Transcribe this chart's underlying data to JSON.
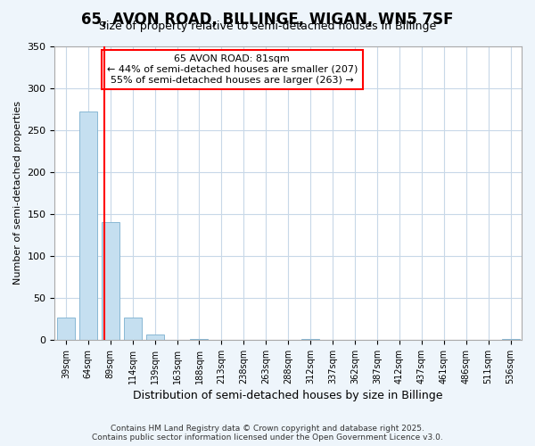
{
  "title1": "65, AVON ROAD, BILLINGE, WIGAN, WN5 7SF",
  "title2": "Size of property relative to semi-detached houses in Billinge",
  "xlabel": "Distribution of semi-detached houses by size in Billinge",
  "ylabel": "Number of semi-detached properties",
  "categories": [
    "39sqm",
    "64sqm",
    "89sqm",
    "114sqm",
    "139sqm",
    "163sqm",
    "188sqm",
    "213sqm",
    "238sqm",
    "263sqm",
    "288sqm",
    "312sqm",
    "337sqm",
    "362sqm",
    "387sqm",
    "412sqm",
    "437sqm",
    "461sqm",
    "486sqm",
    "511sqm",
    "536sqm"
  ],
  "values": [
    27,
    272,
    140,
    27,
    6,
    0,
    1,
    0,
    0,
    0,
    0,
    1,
    0,
    0,
    0,
    0,
    0,
    0,
    0,
    0,
    1
  ],
  "bar_color": "#c5dff0",
  "bar_edgecolor": "#89b8d4",
  "vline_x": 1.73,
  "vline_color": "red",
  "ylim": [
    0,
    350
  ],
  "annotation_title": "65 AVON ROAD: 81sqm",
  "annotation_line1": "← 44% of semi-detached houses are smaller (207)",
  "annotation_line2": "55% of semi-detached houses are larger (263) →",
  "box_color": "red",
  "footer1": "Contains HM Land Registry data © Crown copyright and database right 2025.",
  "footer2": "Contains public sector information licensed under the Open Government Licence v3.0.",
  "bg_color": "#eef5fb",
  "plot_bg_color": "#ffffff",
  "grid_color": "#c8d8e8",
  "title1_fontsize": 12,
  "title2_fontsize": 9,
  "ylabel_fontsize": 8,
  "xlabel_fontsize": 9
}
